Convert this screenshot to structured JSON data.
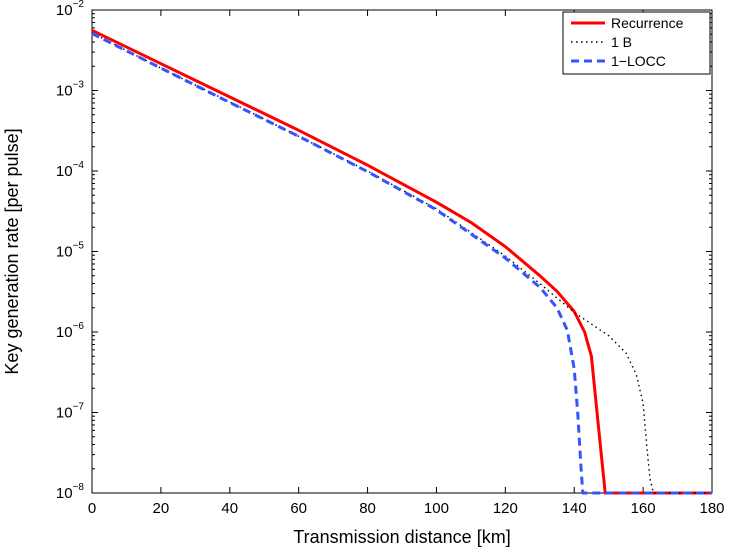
{
  "chart_data": {
    "type": "line",
    "title": "",
    "xlabel": "Transmission distance [km]",
    "ylabel": "Key generation rate [per pulse]",
    "xlim": [
      0,
      180
    ],
    "ylim": [
      1e-08,
      0.01
    ],
    "yscale": "log",
    "grid": false,
    "legend_position": "top-right",
    "x_ticks": [
      0,
      20,
      40,
      60,
      80,
      100,
      120,
      140,
      160,
      180
    ],
    "y_ticks": [
      1e-08,
      1e-07,
      1e-06,
      1e-05,
      0.0001,
      0.001,
      0.01
    ],
    "y_tick_labels": [
      {
        "base": "10",
        "exp": "−8"
      },
      {
        "base": "10",
        "exp": "−7"
      },
      {
        "base": "10",
        "exp": "−6"
      },
      {
        "base": "10",
        "exp": "−5"
      },
      {
        "base": "10",
        "exp": "−4"
      },
      {
        "base": "10",
        "exp": "−3"
      },
      {
        "base": "10",
        "exp": "−2"
      }
    ],
    "series": [
      {
        "name": "Recurrence",
        "color": "#ff0000",
        "style": "solid",
        "points": [
          [
            0,
            0.0056
          ],
          [
            20,
            0.00215
          ],
          [
            40,
            0.00083
          ],
          [
            60,
            0.00032
          ],
          [
            80,
            0.000118
          ],
          [
            100,
            4.1e-05
          ],
          [
            110,
            2.3e-05
          ],
          [
            120,
            1.15e-05
          ],
          [
            130,
            5e-06
          ],
          [
            135,
            3.2e-06
          ],
          [
            140,
            1.8e-06
          ],
          [
            143,
            1e-06
          ],
          [
            145,
            5e-07
          ],
          [
            147,
            7e-08
          ],
          [
            149,
            1e-08
          ],
          [
            180,
            1e-08
          ]
        ]
      },
      {
        "name": "1 B",
        "color": "#000000",
        "style": "dotted",
        "points": [
          [
            0,
            0.0052
          ],
          [
            20,
            0.0019
          ],
          [
            40,
            0.00072
          ],
          [
            60,
            0.00027
          ],
          [
            80,
            0.0001
          ],
          [
            100,
            3.4e-05
          ],
          [
            120,
            8.8e-06
          ],
          [
            130,
            4e-06
          ],
          [
            140,
            1.75e-06
          ],
          [
            150,
            9e-07
          ],
          [
            155,
            5.5e-07
          ],
          [
            158,
            3e-07
          ],
          [
            160,
            1.3e-07
          ],
          [
            161,
            4e-08
          ],
          [
            162,
            1.5e-08
          ],
          [
            163,
            1e-08
          ],
          [
            180,
            1e-08
          ]
        ]
      },
      {
        "name": "1−LOCC",
        "color": "#3355ff",
        "style": "dashed",
        "points": [
          [
            0,
            0.0051
          ],
          [
            20,
            0.0019
          ],
          [
            40,
            0.00071
          ],
          [
            60,
            0.00027
          ],
          [
            80,
            9.8e-05
          ],
          [
            100,
            3.3e-05
          ],
          [
            120,
            8.3e-06
          ],
          [
            130,
            3.6e-06
          ],
          [
            135,
            2e-06
          ],
          [
            138,
            1.05e-06
          ],
          [
            140,
            3.5e-07
          ],
          [
            141,
            1e-07
          ],
          [
            142,
            2e-08
          ],
          [
            142.5,
            1e-08
          ],
          [
            180,
            1e-08
          ]
        ]
      }
    ]
  }
}
